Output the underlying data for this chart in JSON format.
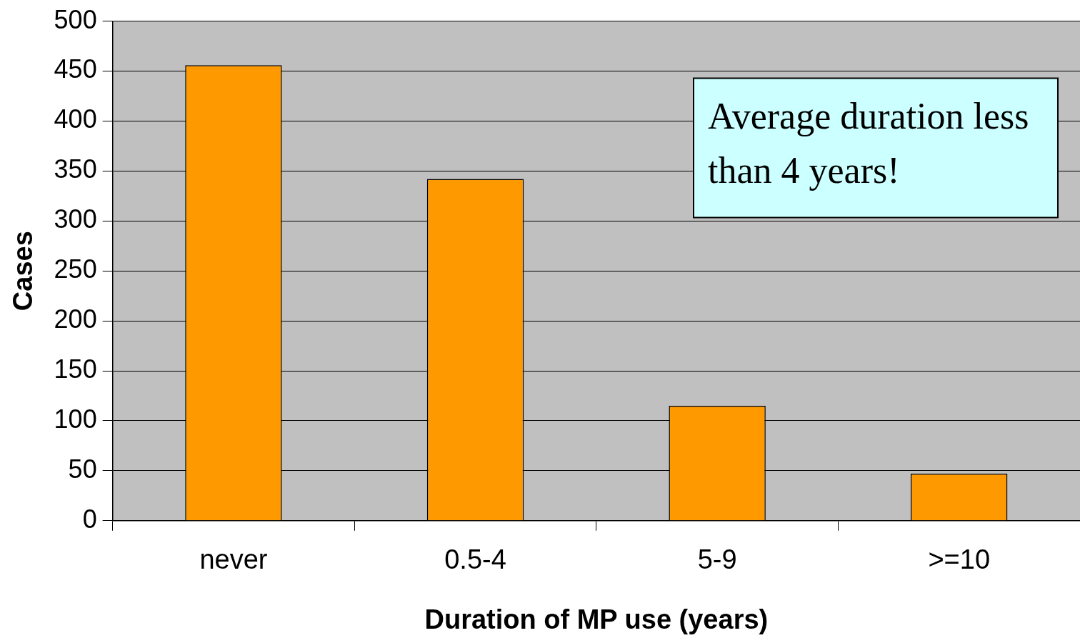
{
  "chart_data": {
    "type": "bar",
    "xlabel": "Duration of MP use (years)",
    "ylabel": "Cases",
    "categories": [
      "never",
      "0.5-4",
      "5-9",
      ">=10"
    ],
    "values": [
      456,
      342,
      115,
      47
    ],
    "color": "#ff9900",
    "ylim": [
      0,
      500
    ],
    "yticks": [
      0,
      50,
      100,
      150,
      200,
      250,
      300,
      350,
      400,
      450,
      500
    ],
    "grid": "y",
    "legend": false,
    "annotations": [
      "Average duration less than 4 years!"
    ]
  }
}
